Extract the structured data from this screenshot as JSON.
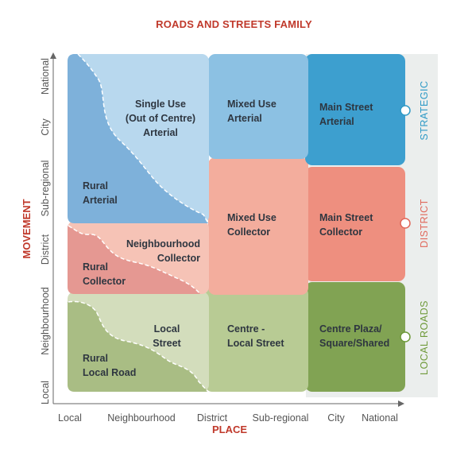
{
  "title": "ROADS AND STREETS FAMILY",
  "axes": {
    "x_label": "PLACE",
    "y_label": "MOVEMENT",
    "x_ticks": [
      "Local",
      "Neighbourhood",
      "District",
      "Sub-regional",
      "City",
      "National"
    ],
    "y_ticks": [
      "Local",
      "Neighbourhood",
      "District",
      "Sub-regional",
      "City",
      "National"
    ]
  },
  "bands": [
    {
      "label": "STRATEGIC",
      "color": "#2f9ac6"
    },
    {
      "label": "DISTRICT",
      "color": "#e0675a"
    },
    {
      "label": "LOCAL ROADS",
      "color": "#6f9a3a"
    }
  ],
  "cells": {
    "single_use": {
      "lines": [
        "Single Use",
        "(Out of Centre)",
        "Arterial"
      ]
    },
    "rural_arterial": {
      "lines": [
        "Rural",
        "Arterial"
      ]
    },
    "mixed_use_arterial": {
      "lines": [
        "Mixed Use",
        "Arterial"
      ]
    },
    "main_street_arterial": {
      "lines": [
        "Main Street",
        "Arterial"
      ]
    },
    "neighbourhood_collector": {
      "lines": [
        "Neighbourhood",
        "Collector"
      ]
    },
    "rural_collector": {
      "lines": [
        "Rural",
        "Collector"
      ]
    },
    "mixed_use_collector": {
      "lines": [
        "Mixed Use",
        "Collector"
      ]
    },
    "main_street_collector": {
      "lines": [
        "Main Street",
        "Collector"
      ]
    },
    "local_street": {
      "lines": [
        "Local",
        "Street"
      ]
    },
    "rural_local_road": {
      "lines": [
        "Rural",
        "Local Road"
      ]
    },
    "centre_local_street": {
      "lines": [
        "Centre -",
        "Local Street"
      ]
    },
    "centre_plaza": {
      "lines": [
        "Centre Plaza/",
        "Square/Shared"
      ]
    }
  },
  "colors": {
    "strategic_dark": "#3d9fcf",
    "strategic_mid": "#8cc1e3",
    "strategic_light": "#b8d8ee",
    "strategic_rural": "#7eb1da",
    "district_dark": "#ee8f7f",
    "district_mid": "#f3ad9d",
    "district_light": "#f6c3b6",
    "district_rural": "#e59892",
    "local_dark": "#81a353",
    "local_mid": "#b8cb94",
    "local_light": "#d3ddbc",
    "local_rural": "#a9bd84",
    "band_bg": "#ebeeed"
  }
}
